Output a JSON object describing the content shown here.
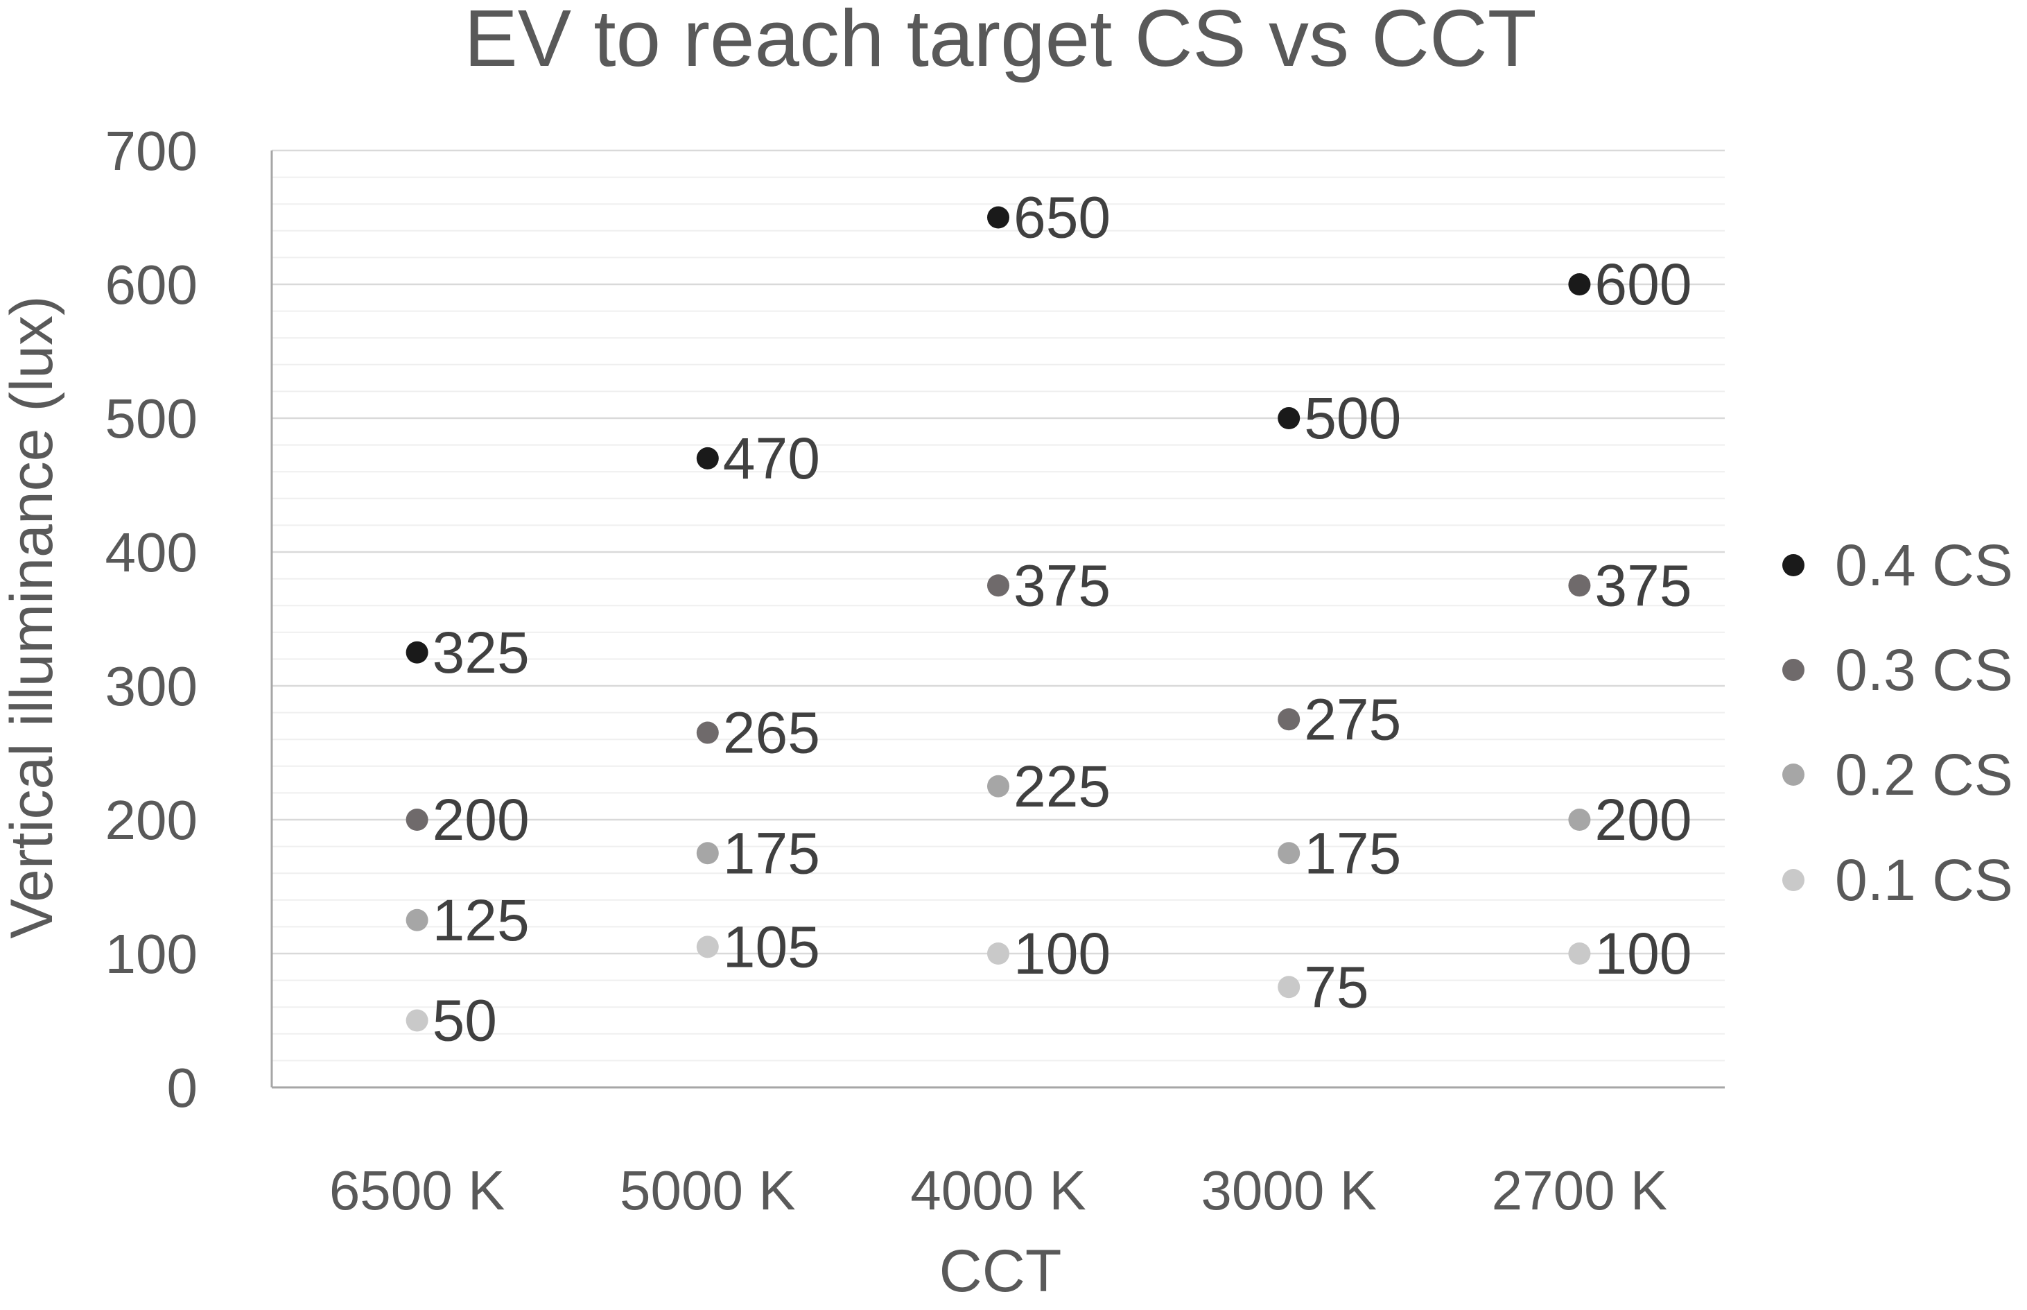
{
  "chart_data": {
    "type": "scatter",
    "title": "EV to reach target CS vs CCT",
    "xlabel": "CCT",
    "ylabel": "Vertical illuminance (lux)",
    "categories": [
      "6500 K",
      "5000 K",
      "4000 K",
      "3000 K",
      "2700 K"
    ],
    "ylim": [
      0,
      700
    ],
    "yticks": [
      "0",
      "100",
      "200",
      "300",
      "400",
      "500",
      "600",
      "700"
    ],
    "grid": true,
    "minor_grid": true,
    "legend_position": "right",
    "data_labels": true,
    "series": [
      {
        "name": "0.4 CS",
        "color": "#1a1a1a",
        "values": [
          325,
          470,
          650,
          500,
          600
        ],
        "labels": [
          "325",
          "470",
          "650",
          "500",
          "600"
        ]
      },
      {
        "name": "0.3 CS",
        "color": "#6f6a6b",
        "values": [
          200,
          265,
          375,
          275,
          375
        ],
        "labels": [
          "200",
          "265",
          "375",
          "275",
          "375"
        ]
      },
      {
        "name": "0.2 CS",
        "color": "#a6a6a6",
        "values": [
          125,
          175,
          225,
          175,
          200
        ],
        "labels": [
          "125",
          "175",
          "225",
          "175",
          "200"
        ]
      },
      {
        "name": "0.1 CS",
        "color": "#c9c9c9",
        "values": [
          50,
          105,
          100,
          75,
          100
        ],
        "labels": [
          "50",
          "105",
          "100",
          "75",
          "100"
        ]
      }
    ]
  }
}
